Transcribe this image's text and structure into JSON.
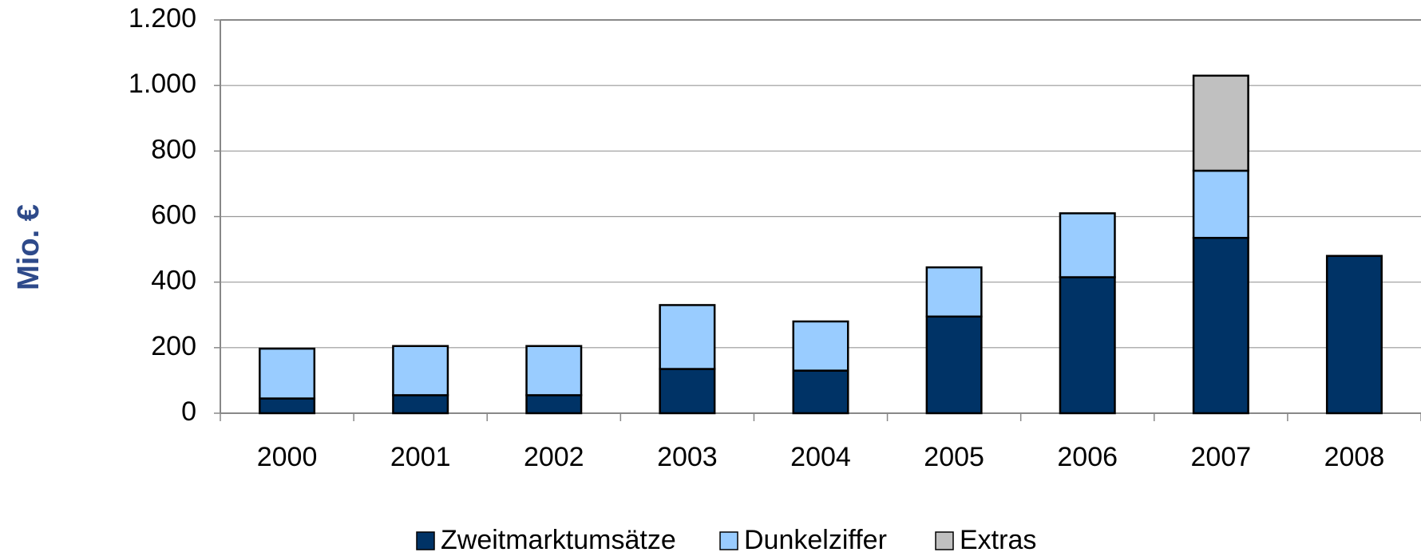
{
  "chart_data": {
    "type": "stacked_bar",
    "y_label": "Mio. €",
    "categories": [
      "2000",
      "2001",
      "2002",
      "2003",
      "2004",
      "2005",
      "2006",
      "2007",
      "2008"
    ],
    "series": [
      {
        "name": "Zweitmarktumsätze",
        "color": "#003366",
        "values": [
          45,
          55,
          55,
          135,
          130,
          295,
          415,
          535,
          480
        ]
      },
      {
        "name": "Dunkelziffer",
        "color": "#99ccff",
        "values": [
          152,
          150,
          150,
          195,
          150,
          150,
          195,
          205,
          null
        ]
      },
      {
        "name": "Extras",
        "color": "#c0c0c0",
        "values": [
          null,
          null,
          null,
          null,
          null,
          null,
          null,
          290,
          null
        ]
      }
    ],
    "ylim": [
      0,
      1200
    ],
    "yticks": [
      0,
      200,
      400,
      600,
      800,
      {
        "value": 1000,
        "label": "1.000"
      },
      {
        "value": 1200,
        "label": "1.200"
      }
    ],
    "grid": true,
    "legend": "bottom"
  }
}
